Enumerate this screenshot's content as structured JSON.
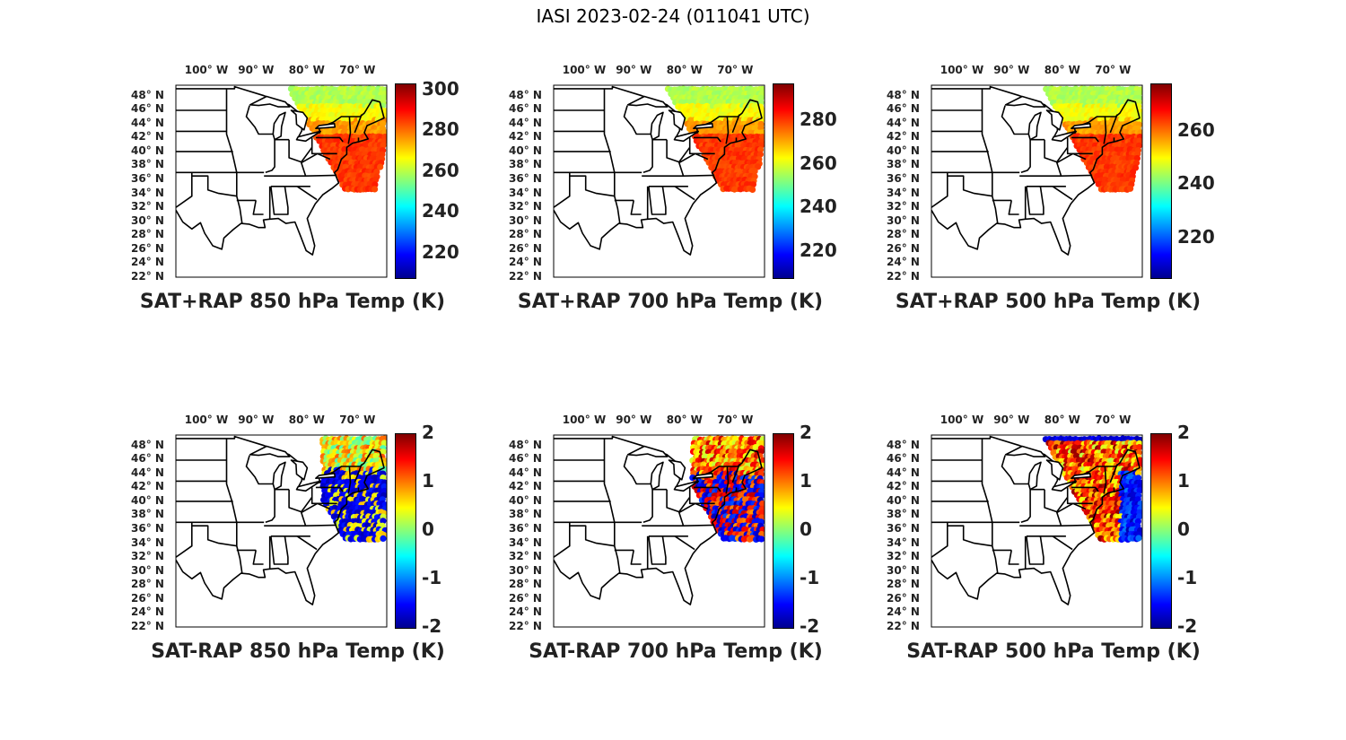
{
  "title": "IASI 2023-02-24 (011041 UTC)",
  "lon_ticks": [
    "100° W",
    "90° W",
    "80° W",
    "70° W"
  ],
  "lat_ticks": [
    "48° N",
    "46° N",
    "44° N",
    "42° N",
    "40° N",
    "38° N",
    "36° N",
    "34° N",
    "32° N",
    "30° N",
    "28° N",
    "26° N",
    "24° N",
    "22° N"
  ],
  "panels": [
    {
      "title": "SAT+RAP 850 hPa Temp (K)",
      "colorbar_ticks": [
        "300",
        "280",
        "260",
        "240",
        "220"
      ],
      "range": [
        208,
        303
      ],
      "swath": "partial"
    },
    {
      "title": "SAT+RAP 700 hPa Temp (K)",
      "colorbar_ticks": [
        "280",
        "260",
        "240",
        "220"
      ],
      "range": [
        208,
        297
      ],
      "swath": "partial"
    },
    {
      "title": "SAT+RAP 500 hPa Temp (K)",
      "colorbar_ticks": [
        "260",
        "240",
        "220"
      ],
      "range": [
        205,
        278
      ],
      "swath": "partial"
    },
    {
      "title": "SAT-RAP 850 hPa Temp (K)",
      "colorbar_ticks": [
        "2",
        "1",
        "0",
        "-1",
        "-2"
      ],
      "range": [
        -2,
        2
      ],
      "swath": "diff"
    },
    {
      "title": "SAT-RAP 700 hPa Temp (K)",
      "colorbar_ticks": [
        "2",
        "1",
        "0",
        "-1",
        "-2"
      ],
      "range": [
        -2,
        2
      ],
      "swath": "diff"
    },
    {
      "title": "SAT-RAP 500 hPa Temp (K)",
      "colorbar_ticks": [
        "2",
        "1",
        "0",
        "-1",
        "-2"
      ],
      "range": [
        -2,
        2
      ],
      "swath": "diff"
    }
  ],
  "colormap": "jet"
}
